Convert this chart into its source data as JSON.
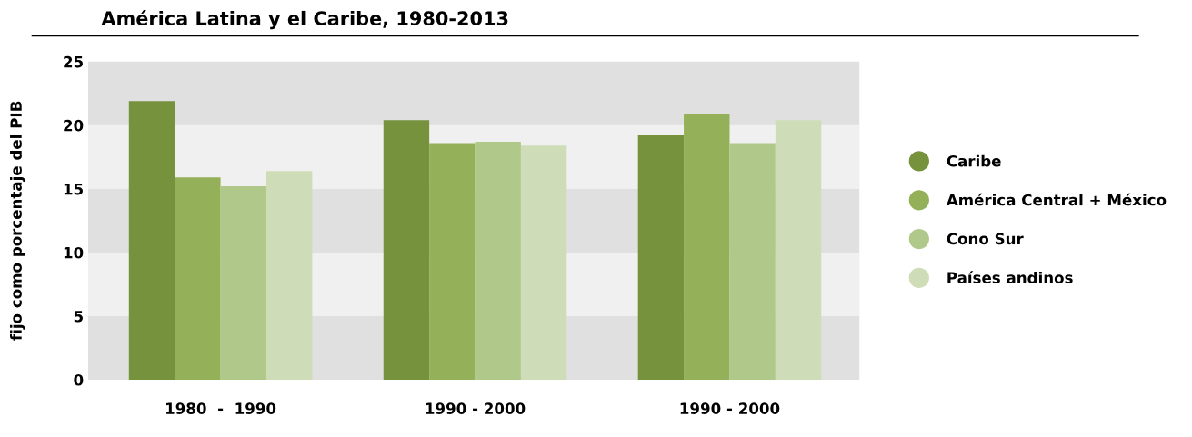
{
  "chart_data": {
    "type": "bar",
    "title": "América Latina y el Caribe, 1980-2013",
    "ylabel": "fijo como porcentaje del PIB",
    "categories": [
      "1980  -  1990",
      "1990 - 2000",
      "1990 - 2000"
    ],
    "series": [
      {
        "name": "Caribe",
        "color": "#76923c",
        "values": [
          21.9,
          20.4,
          19.2
        ]
      },
      {
        "name": "América Central + México",
        "color": "#94b058",
        "values": [
          15.9,
          18.6,
          20.9
        ]
      },
      {
        "name": "Cono Sur",
        "color": "#b0c98a",
        "values": [
          15.2,
          18.7,
          18.6
        ]
      },
      {
        "name": "Países andinos",
        "color": "#cfdcb8",
        "values": [
          16.4,
          18.4,
          20.4
        ]
      }
    ],
    "ylim": [
      0,
      25
    ],
    "yticks": [
      0,
      5,
      10,
      15,
      20,
      25
    ],
    "grid": false,
    "legend": "right"
  }
}
